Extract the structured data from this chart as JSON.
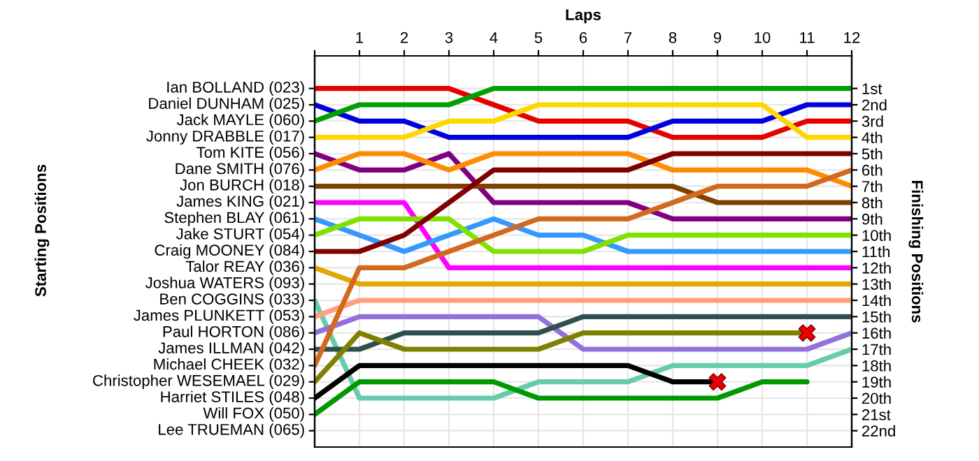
{
  "chart_data": {
    "type": "line",
    "xlabel": "Laps",
    "y2label": "Finishing Positions",
    "x": [
      0,
      1,
      2,
      3,
      4,
      5,
      6,
      7,
      8,
      9,
      10,
      11,
      12
    ],
    "xlim": [
      0,
      12
    ],
    "xticks": [
      {
        "value": 0,
        "label": null
      },
      1,
      2,
      3,
      4,
      5,
      6,
      7,
      8,
      9,
      10,
      11,
      12
    ],
    "y2lim": [
      23,
      -1
    ],
    "y2ticks": [
      {
        "value": 1,
        "label": "1st"
      },
      {
        "value": 2,
        "label": "2nd"
      },
      {
        "value": 3,
        "label": "3rd"
      },
      {
        "value": 4,
        "label": "4th"
      },
      {
        "value": 5,
        "label": "5th"
      },
      {
        "value": 6,
        "label": "6th"
      },
      {
        "value": 7,
        "label": "7th"
      },
      {
        "value": 8,
        "label": "8th"
      },
      {
        "value": 9,
        "label": "9th"
      },
      {
        "value": 10,
        "label": "10th"
      },
      {
        "value": 11,
        "label": "11th"
      },
      {
        "value": 12,
        "label": "12th"
      },
      {
        "value": 13,
        "label": "13th"
      },
      {
        "value": 14,
        "label": "14th"
      },
      {
        "value": 15,
        "label": "15th"
      },
      {
        "value": 16,
        "label": "16th"
      },
      {
        "value": 17,
        "label": "17th"
      },
      {
        "value": 18,
        "label": "18th"
      },
      {
        "value": 19,
        "label": "19th"
      },
      {
        "value": 20,
        "label": "20th"
      },
      {
        "value": 21,
        "label": "21st"
      },
      {
        "value": 22,
        "label": "22nd"
      }
    ],
    "annotations": [
      "Starting Positions",
      "Ian BOLLAND (023)",
      "Daniel DUNHAM (025)",
      "Jack MAYLE (060)",
      "Jonny DRABBLE (017)",
      "Tom KITE (056)",
      "Dane SMITH (076)",
      "Jon BURCH (018)",
      "James KING (021)",
      "Stephen BLAY (061)",
      "Jake STURT (054)",
      "Craig MOONEY (084)",
      "Talor REAY (036)",
      "Joshua WATERS (093)",
      "Ben COGGINS (033)",
      "James PLUNKETT (053)",
      "Paul HORTON (086)",
      "James ILLMAN (042)",
      "Michael CHEEK (032)",
      "Christopher WESEMAEL (029)",
      "Harriet STILES (048)",
      "Will FOX (050)",
      "Lee TRUEMAN (065)"
    ],
    "grid": true,
    "marker": "none",
    "line_style": "solid",
    "series": [
      {
        "axis": "y2",
        "color": "#e60000",
        "values": [
          1,
          1,
          1,
          1,
          2,
          3,
          3,
          3,
          4,
          4,
          4,
          3,
          3
        ]
      },
      {
        "axis": "y2",
        "color": "#0000dd",
        "values": [
          2,
          3,
          3,
          4,
          4,
          4,
          4,
          4,
          3,
          3,
          3,
          2,
          2
        ]
      },
      {
        "axis": "y2",
        "color": "#00a000",
        "values": [
          3,
          2,
          2,
          2,
          1,
          1,
          1,
          1,
          1,
          1,
          1,
          1,
          1
        ]
      },
      {
        "axis": "y2",
        "color": "#ffd700",
        "values": [
          4,
          4,
          4,
          3,
          3,
          2,
          2,
          2,
          2,
          2,
          2,
          4,
          4
        ]
      },
      {
        "axis": "y2",
        "color": "#800080",
        "values": [
          5,
          6,
          6,
          5,
          8,
          8,
          8,
          8,
          9,
          9,
          9,
          9,
          9
        ]
      },
      {
        "axis": "y2",
        "color": "#ff8c00",
        "values": [
          6,
          5,
          5,
          6,
          5,
          5,
          5,
          5,
          6,
          6,
          6,
          6,
          7
        ]
      },
      {
        "axis": "y2",
        "color": "#804000",
        "values": [
          7,
          7,
          7,
          7,
          7,
          7,
          7,
          7,
          7,
          8,
          8,
          8,
          8
        ]
      },
      {
        "axis": "y2",
        "color": "#ff00ff",
        "values": [
          8,
          8,
          8,
          12,
          12,
          12,
          12,
          12,
          12,
          12,
          12,
          12,
          12
        ]
      },
      {
        "axis": "y2",
        "color": "#3399ff",
        "values": [
          9,
          10,
          11,
          10,
          9,
          10,
          10,
          11,
          11,
          11,
          11,
          11,
          11
        ]
      },
      {
        "axis": "y2",
        "color": "#80e000",
        "values": [
          10,
          9,
          9,
          9,
          11,
          11,
          11,
          10,
          10,
          10,
          10,
          10,
          10
        ]
      },
      {
        "axis": "y2",
        "color": "#800000",
        "values": [
          11,
          11,
          10,
          8,
          6,
          6,
          6,
          6,
          5,
          5,
          5,
          5,
          5
        ]
      },
      {
        "axis": "y2",
        "color": "#e0a800",
        "values": [
          12,
          13,
          13,
          13,
          13,
          13,
          13,
          13,
          13,
          13,
          13,
          13,
          13
        ]
      },
      {
        "axis": "y2",
        "color": "#66ccaa",
        "values": [
          14,
          20,
          20,
          20,
          20,
          19,
          19,
          19,
          18,
          18,
          18,
          18,
          17
        ]
      },
      {
        "axis": "y2",
        "color": "#ffa07a",
        "values": [
          15,
          14,
          14,
          14,
          14,
          14,
          14,
          14,
          14,
          14,
          14,
          14,
          14
        ]
      },
      {
        "axis": "y2",
        "color": "#9370db",
        "values": [
          16,
          15,
          15,
          15,
          15,
          15,
          17,
          17,
          17,
          17,
          17,
          17,
          16
        ]
      },
      {
        "axis": "y2",
        "color": "#2f4f4f",
        "values": [
          17,
          17,
          16,
          16,
          16,
          16,
          15,
          15,
          15,
          15,
          15,
          15,
          15
        ]
      },
      {
        "axis": "y2",
        "color": "#d2691e",
        "values": [
          18,
          12,
          12,
          11,
          10,
          9,
          9,
          9,
          8,
          7,
          7,
          7,
          6
        ]
      },
      {
        "axis": "y2",
        "color": "#808000",
        "values": [
          19,
          16,
          17,
          17,
          17,
          17,
          16,
          16,
          16,
          16,
          16,
          16,
          null
        ]
      },
      {
        "axis": "y2",
        "color": "#000000",
        "values": [
          20,
          18,
          18,
          18,
          18,
          18,
          18,
          18,
          19,
          19,
          null,
          null,
          null
        ]
      },
      {
        "axis": "y2",
        "color": "#009900",
        "values": [
          21,
          19,
          19,
          19,
          19,
          20,
          20,
          20,
          20,
          20,
          19,
          19,
          null
        ]
      },
      {
        "axis": "y2",
        "type": "scatter",
        "marker": "cross",
        "color": "#ee0000",
        "x": [
          9,
          11
        ],
        "values": [
          19,
          16
        ]
      }
    ]
  }
}
